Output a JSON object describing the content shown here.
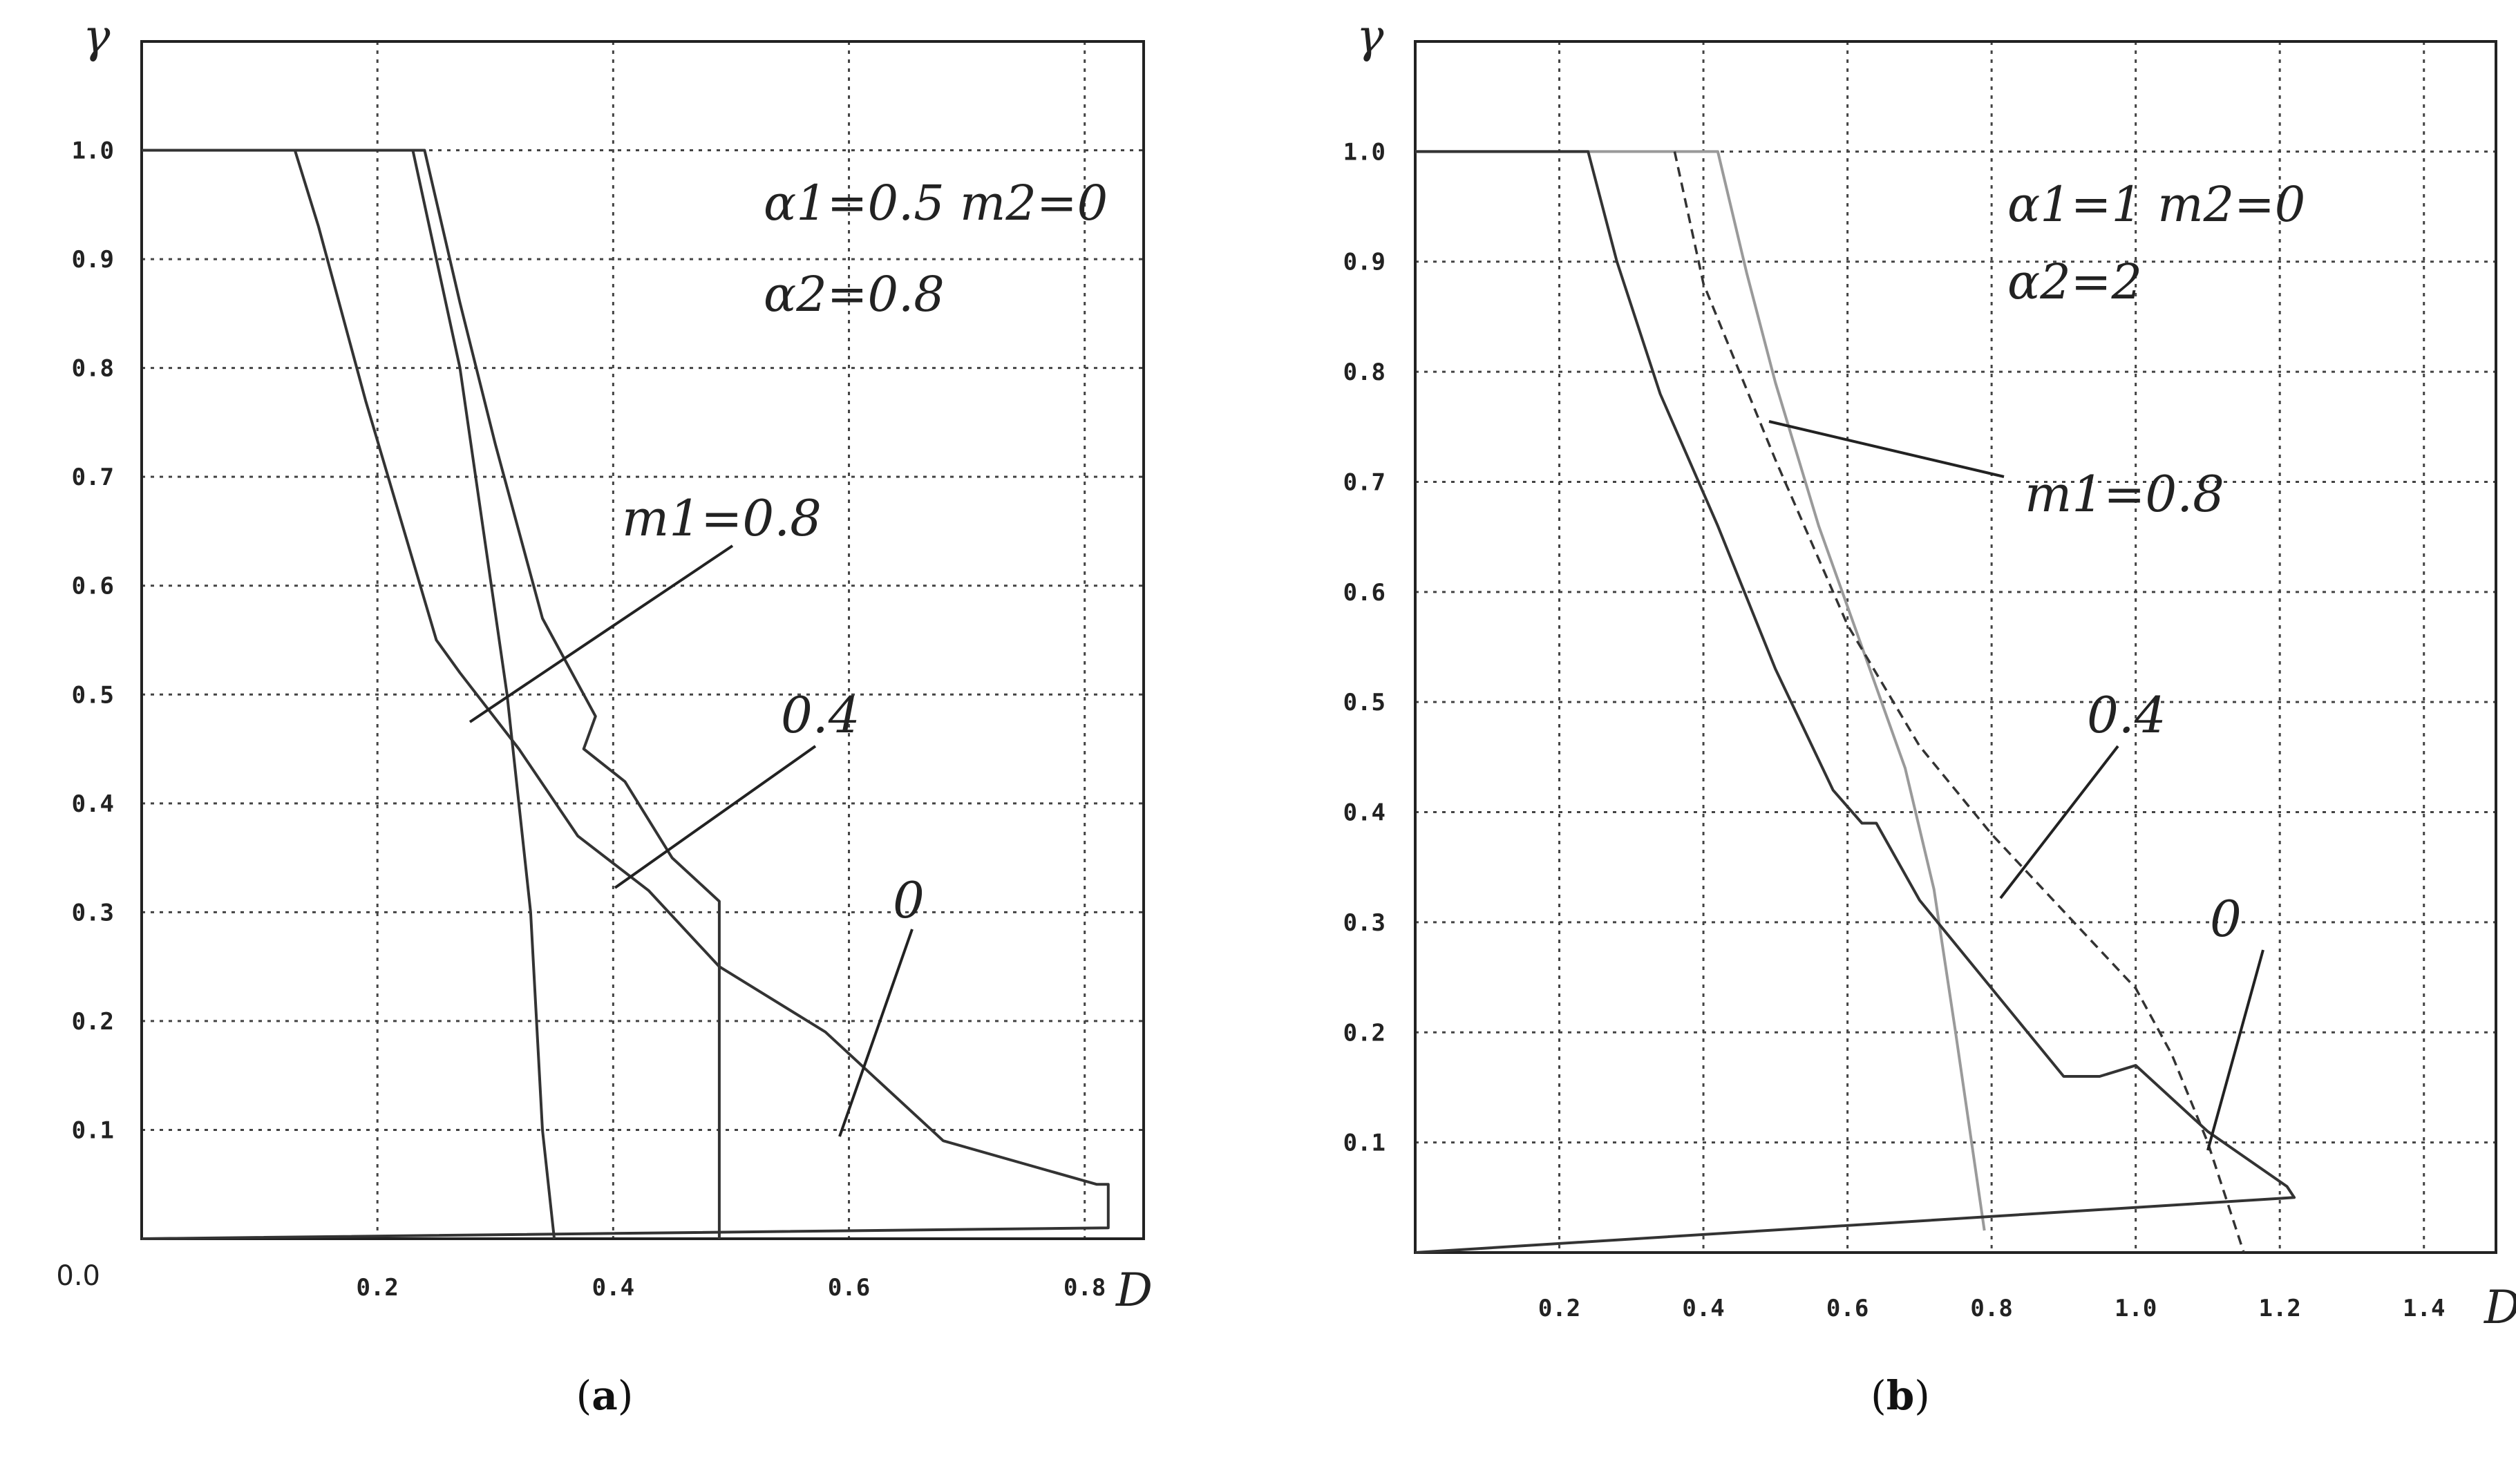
{
  "chart_data": [
    {
      "type": "line",
      "caption": {
        "open": "(",
        "letter": "a",
        "close": ")"
      },
      "xlabel": "D",
      "ylabel": "γ",
      "xlim": [
        0,
        0.85
      ],
      "ylim": [
        0,
        1.1
      ],
      "x_ticks": [
        "0.2",
        "0.4",
        "0.6",
        "0.8"
      ],
      "y_ticks": [
        "0.0",
        "0.1",
        "0.2",
        "0.3",
        "0.4",
        "0.5",
        "0.6",
        "0.7",
        "0.8",
        "0.9",
        "1.0"
      ],
      "grid": true,
      "params": {
        "line1": "α1=0.5   m2=0",
        "line2": "α2=0.8"
      },
      "curve_labels": {
        "m1_08": "m1=0.8",
        "m1_04": "0.4",
        "m1_0": "0"
      },
      "series": [
        {
          "label_key": "m1_08",
          "points": [
            [
              0.0,
              1.0
            ],
            [
              0.23,
              1.0
            ],
            [
              0.27,
              0.8
            ],
            [
              0.29,
              0.65
            ],
            [
              0.31,
              0.5
            ],
            [
              0.33,
              0.3
            ],
            [
              0.34,
              0.1
            ],
            [
              0.35,
              0.0
            ]
          ]
        },
        {
          "label_key": "m1_04",
          "points": [
            [
              0.0,
              1.0
            ],
            [
              0.24,
              1.0
            ],
            [
              0.27,
              0.86
            ],
            [
              0.3,
              0.73
            ],
            [
              0.34,
              0.57
            ],
            [
              0.385,
              0.48
            ],
            [
              0.375,
              0.45
            ],
            [
              0.41,
              0.42
            ],
            [
              0.45,
              0.35
            ],
            [
              0.49,
              0.31
            ],
            [
              0.49,
              0.0
            ]
          ]
        },
        {
          "label_key": "m1_0",
          "points": [
            [
              0.0,
              1.0
            ],
            [
              0.13,
              1.0
            ],
            [
              0.15,
              0.93
            ],
            [
              0.19,
              0.77
            ],
            [
              0.22,
              0.66
            ],
            [
              0.25,
              0.55
            ],
            [
              0.27,
              0.52
            ],
            [
              0.32,
              0.45
            ],
            [
              0.37,
              0.37
            ],
            [
              0.43,
              0.32
            ],
            [
              0.49,
              0.25
            ],
            [
              0.58,
              0.19
            ],
            [
              0.68,
              0.09
            ],
            [
              0.81,
              0.05
            ],
            [
              0.82,
              0.05
            ],
            [
              0.82,
              0.01
            ],
            [
              0.0,
              0.0
            ]
          ]
        }
      ]
    },
    {
      "type": "line",
      "caption": {
        "open": "(",
        "letter": "b",
        "close": ")"
      },
      "xlabel": "D",
      "ylabel": "γ",
      "xlim": [
        0,
        1.5
      ],
      "ylim": [
        0,
        1.1
      ],
      "x_ticks": [
        "0.2",
        "0.4",
        "0.6",
        "0.8",
        "1.0",
        "1.2",
        "1.4"
      ],
      "y_ticks": [
        "0.1",
        "0.2",
        "0.3",
        "0.4",
        "0.5",
        "0.6",
        "0.7",
        "0.8",
        "0.9",
        "1.0"
      ],
      "grid": true,
      "params": {
        "line1": "α1=1  m2=0",
        "line2": "α2=2"
      },
      "curve_labels": {
        "m1_08": "m1=0.8",
        "m1_04": "0.4",
        "m1_0": "0"
      },
      "series": [
        {
          "label_key": "m1_08",
          "style": "light",
          "points": [
            [
              0.0,
              1.0
            ],
            [
              0.42,
              1.0
            ],
            [
              0.46,
              0.89
            ],
            [
              0.5,
              0.79
            ],
            [
              0.56,
              0.66
            ],
            [
              0.62,
              0.55
            ],
            [
              0.68,
              0.44
            ],
            [
              0.72,
              0.33
            ],
            [
              0.75,
              0.2
            ],
            [
              0.79,
              0.02
            ]
          ]
        },
        {
          "label_key": "m1_04",
          "style": "dashed",
          "points": [
            [
              0.36,
              1.0
            ],
            [
              0.4,
              0.88
            ],
            [
              0.5,
              0.72
            ],
            [
              0.6,
              0.57
            ],
            [
              0.7,
              0.46
            ],
            [
              0.8,
              0.38
            ],
            [
              0.9,
              0.31
            ],
            [
              1.0,
              0.24
            ],
            [
              1.05,
              0.18
            ],
            [
              1.1,
              0.1
            ],
            [
              1.15,
              0.0
            ]
          ]
        },
        {
          "label_key": "m1_0",
          "style": "solid",
          "points": [
            [
              0.0,
              1.0
            ],
            [
              0.24,
              1.0
            ],
            [
              0.28,
              0.9
            ],
            [
              0.34,
              0.78
            ],
            [
              0.42,
              0.66
            ],
            [
              0.5,
              0.53
            ],
            [
              0.58,
              0.42
            ],
            [
              0.62,
              0.39
            ],
            [
              0.64,
              0.39
            ],
            [
              0.7,
              0.32
            ],
            [
              0.8,
              0.24
            ],
            [
              0.9,
              0.16
            ],
            [
              0.95,
              0.16
            ],
            [
              1.0,
              0.17
            ],
            [
              1.1,
              0.11
            ],
            [
              1.21,
              0.06
            ],
            [
              1.22,
              0.05
            ],
            [
              0.0,
              0.0
            ]
          ]
        }
      ]
    }
  ]
}
